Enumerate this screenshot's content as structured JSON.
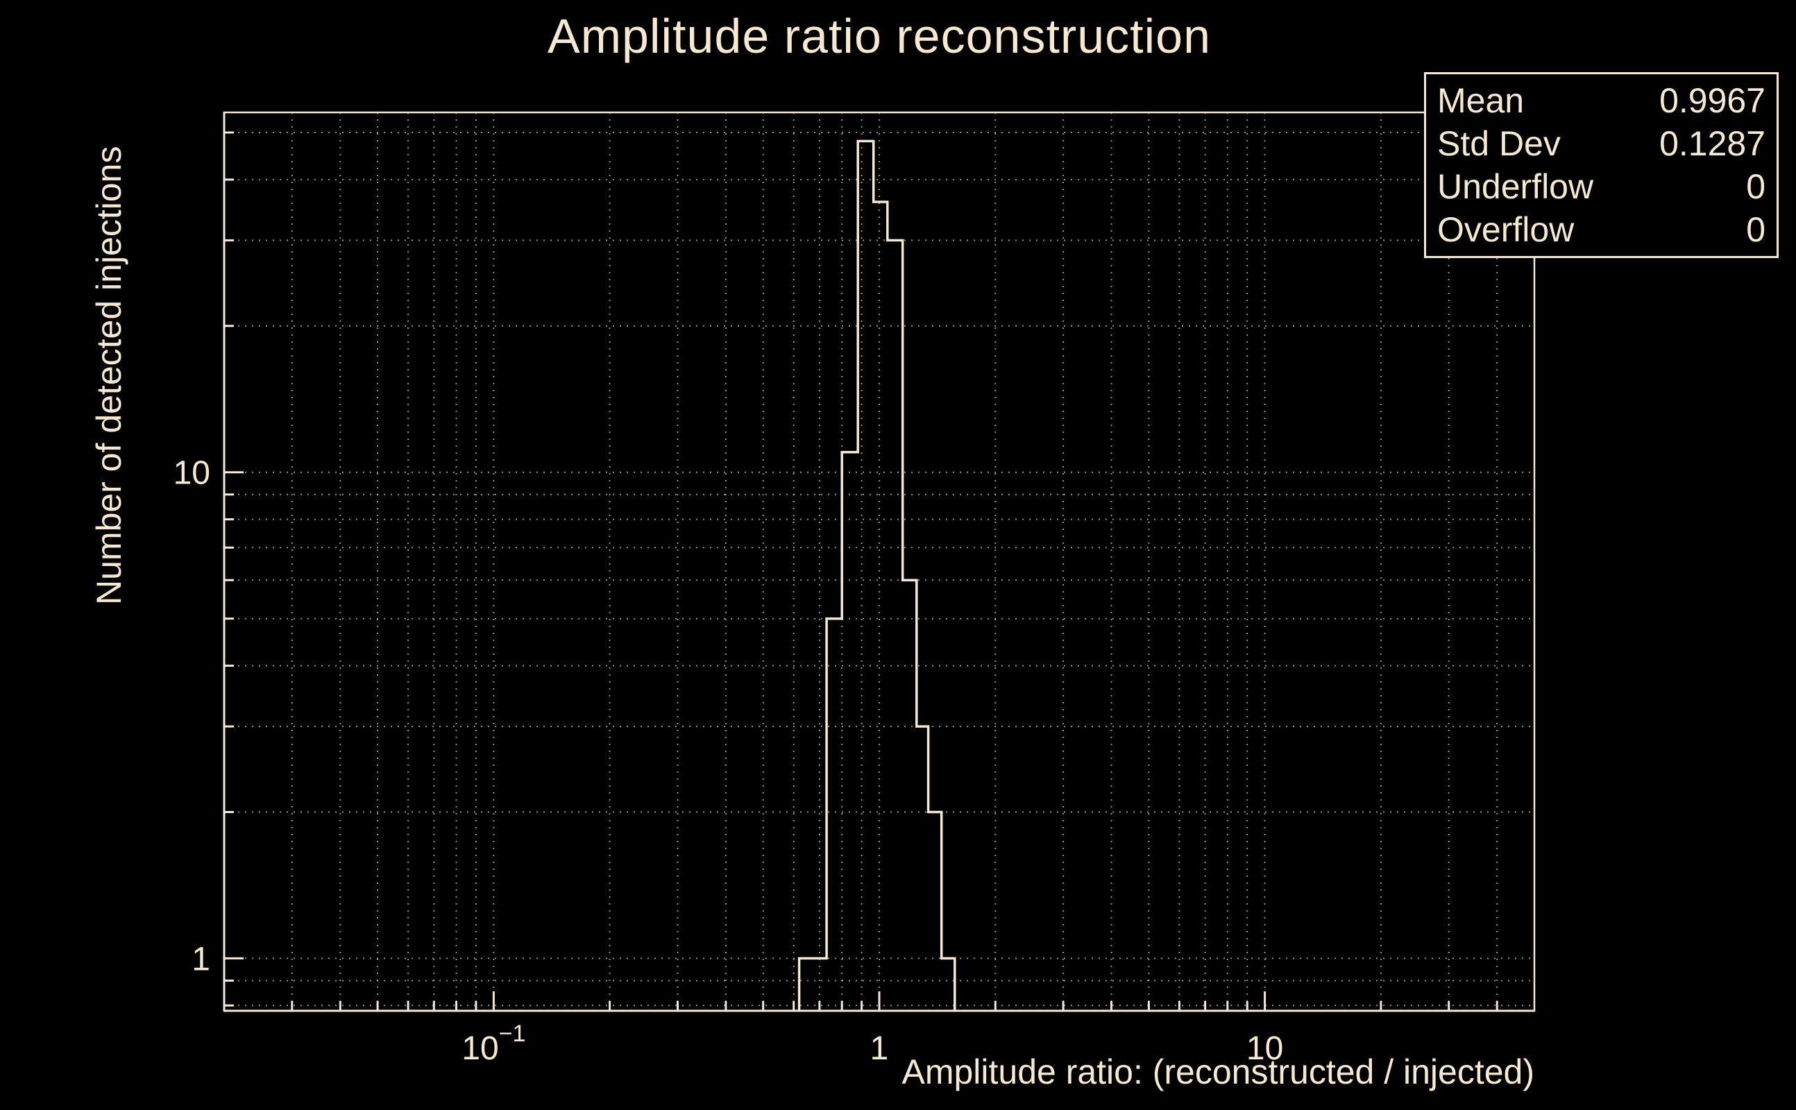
{
  "colors": {
    "background": "#000000",
    "foreground": "#f5e9cf"
  },
  "stats_box": {
    "rows": [
      {
        "label": "Mean",
        "value": "0.9967"
      },
      {
        "label": "Std Dev",
        "value": "0.1287"
      },
      {
        "label": "Underflow",
        "value": "0"
      },
      {
        "label": "Overflow",
        "value": "0"
      }
    ]
  },
  "chart_data": {
    "type": "bar",
    "title": "Amplitude ratio reconstruction",
    "xlabel": "Amplitude ratio: (reconstructed / injected)",
    "ylabel": "Number of detected injections",
    "x_scale": "log",
    "y_scale": "log",
    "xlim": [
      0.02,
      50
    ],
    "ylim": [
      0.78,
      55
    ],
    "grid": true,
    "x_ticks": [
      {
        "value": 0.1,
        "label": "10",
        "exp": "−1"
      },
      {
        "value": 1,
        "label": "1",
        "exp": ""
      },
      {
        "value": 10,
        "label": "10",
        "exp": ""
      }
    ],
    "y_ticks": [
      {
        "value": 1,
        "label": "1"
      },
      {
        "value": 10,
        "label": "10"
      }
    ],
    "bin_edges": [
      0.62,
      0.73,
      0.8,
      0.88,
      0.966,
      1.05,
      1.15,
      1.25,
      1.34,
      1.45,
      1.57
    ],
    "counts": [
      1,
      5,
      11,
      48,
      36,
      30,
      6,
      3,
      2,
      1
    ],
    "stats": {
      "mean": 0.9967,
      "std_dev": 0.1287,
      "underflow": 0,
      "overflow": 0
    }
  }
}
